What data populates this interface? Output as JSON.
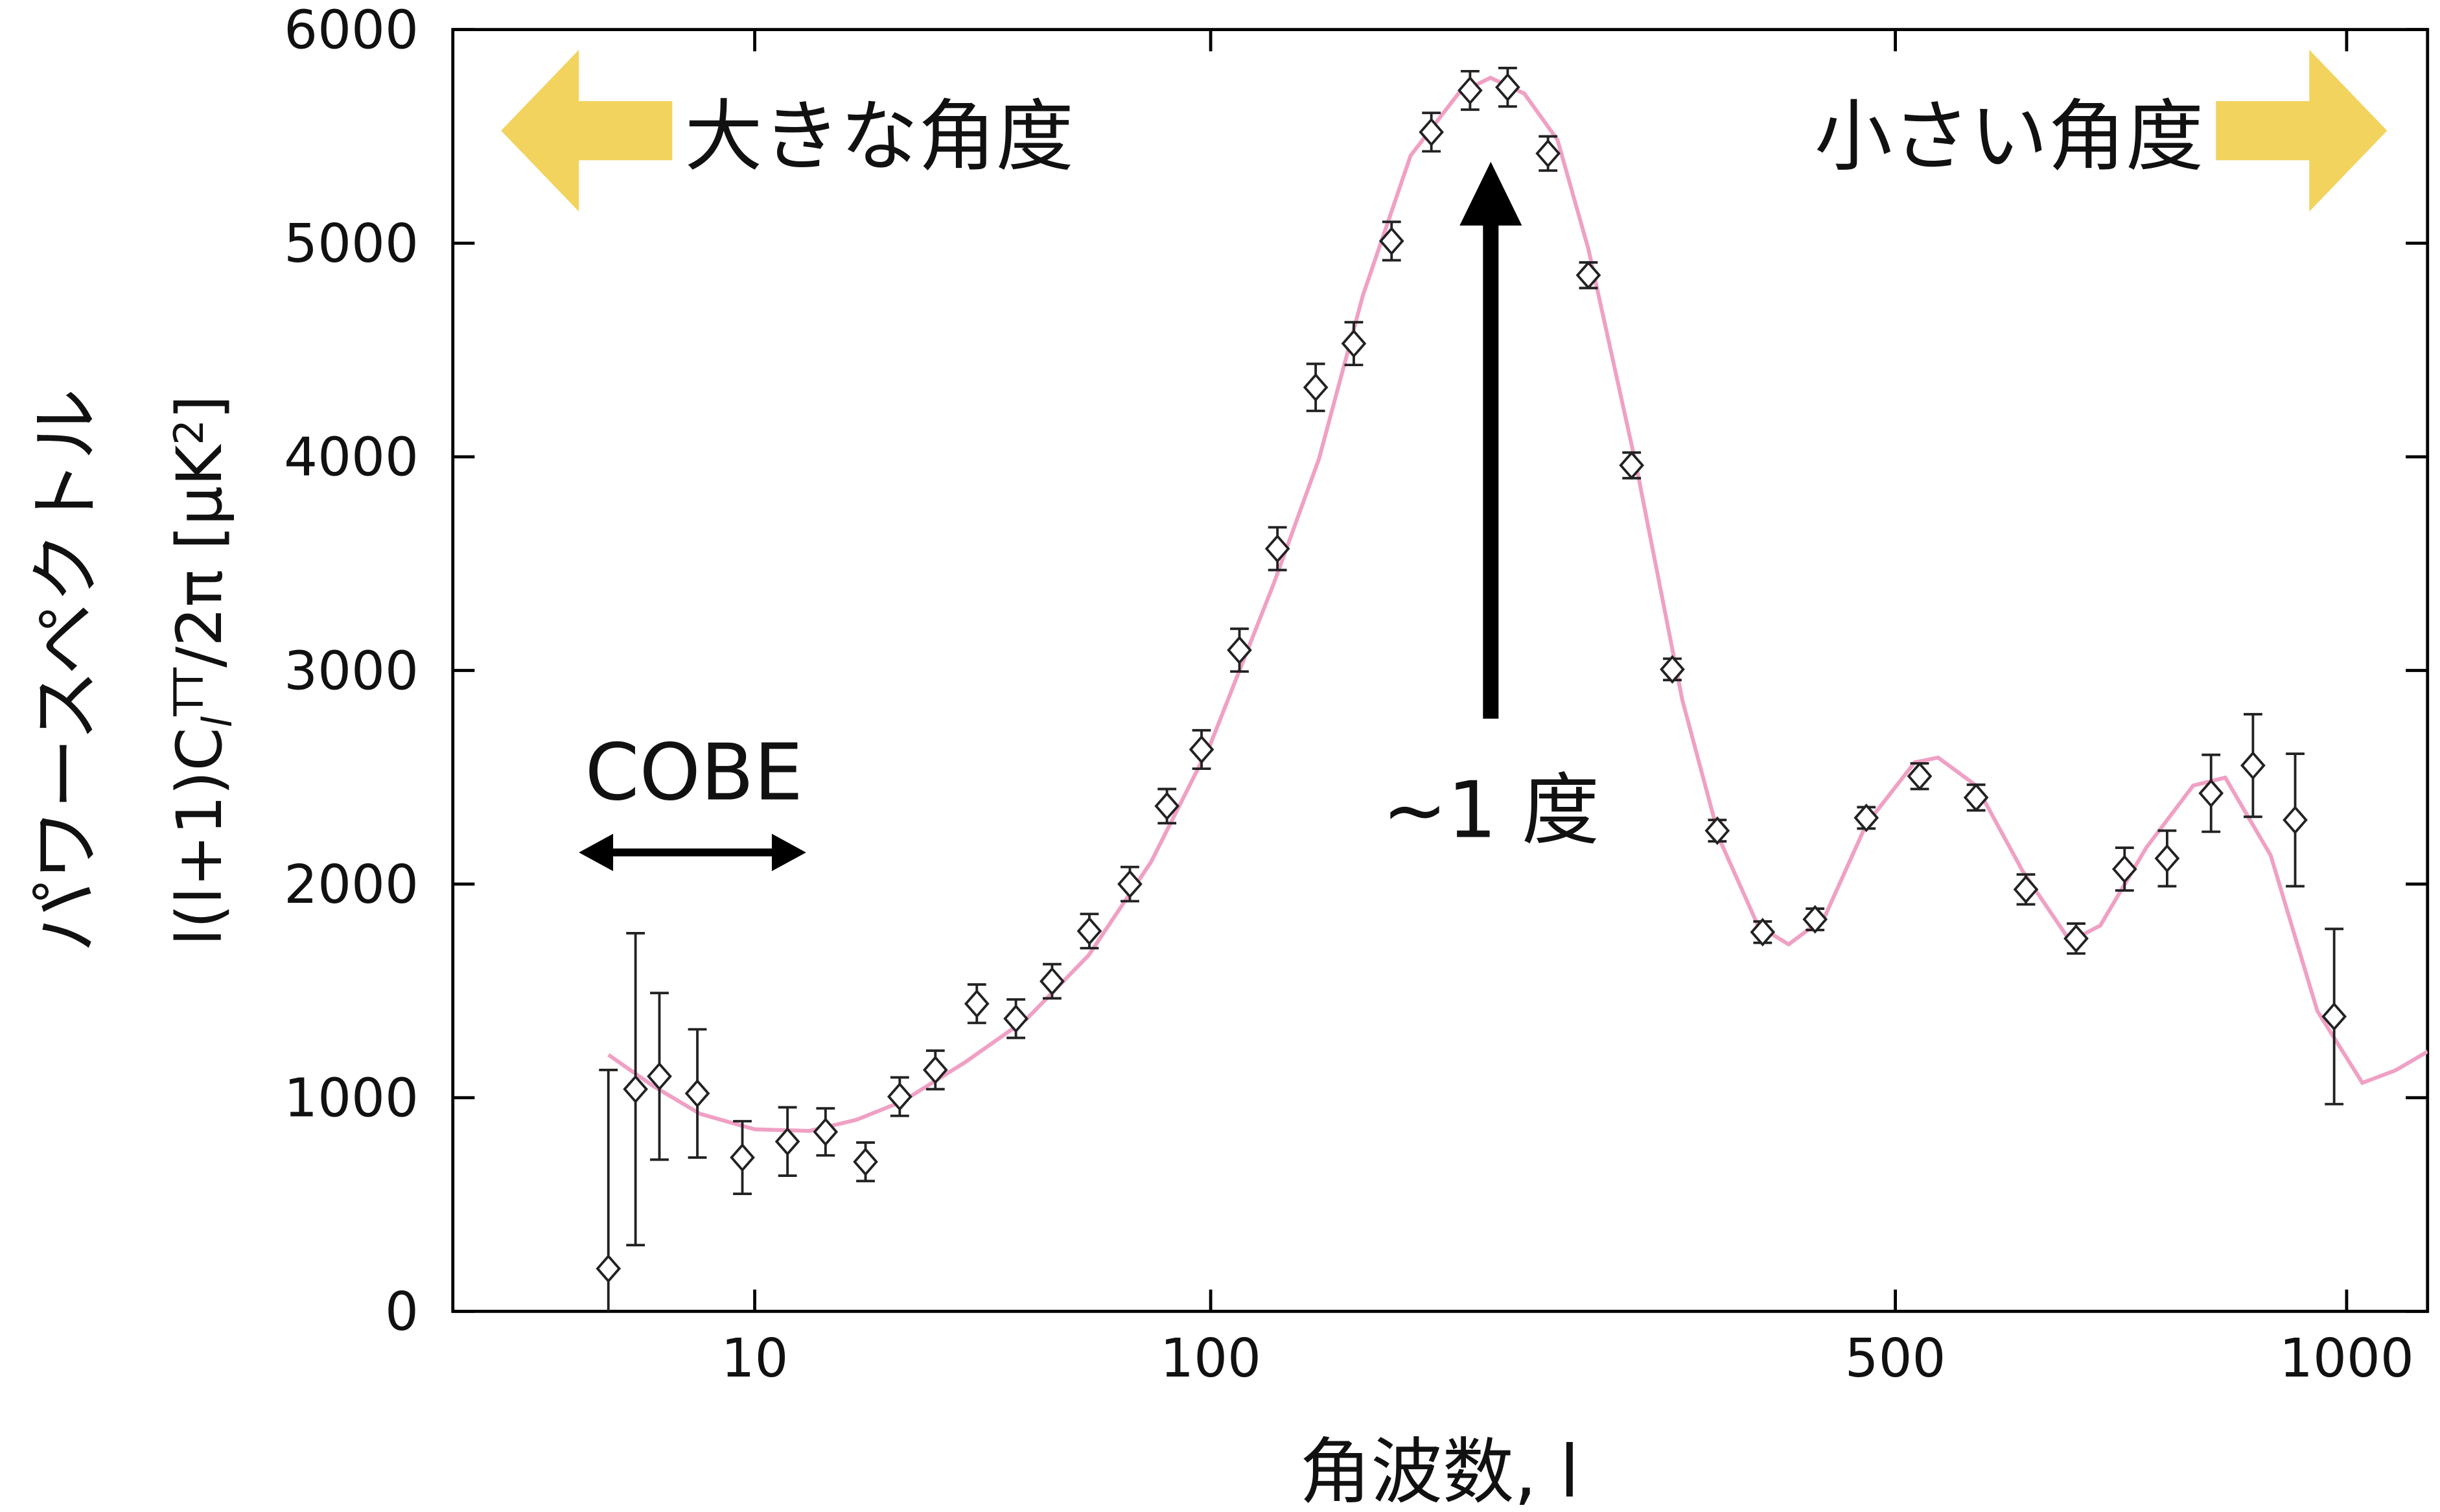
{
  "chart_data": {
    "type": "scatter",
    "xscale": "log",
    "xlim": [
      2.2,
      1130
    ],
    "xticks": [
      10,
      100,
      500,
      1000
    ],
    "ylim": [
      0,
      6000
    ],
    "yticks": [
      0,
      1000,
      2000,
      3000,
      4000,
      5000,
      6000
    ],
    "xlabel": "角波数, l",
    "ylabel": "パワースペクトル",
    "ylabel_formula": [
      "l(l+1)C",
      "l",
      "TT",
      "/2π [μK",
      "2",
      "]"
    ],
    "color": "#222222",
    "x": [
      4.8,
      5.5,
      6.2,
      7.5,
      9.4,
      11.8,
      14.3,
      17.5,
      20.8,
      24.9,
      30.7,
      37.4,
      44.9,
      54.2,
      66.5,
      80.2,
      95.5,
      107,
      117,
      128,
      140,
      153,
      168,
      184,
      201,
      221,
      243,
      269,
      296,
      329,
      366,
      414,
      467,
      519,
      566,
      611,
      660,
      711,
      759,
      812,
      866,
      924,
      981
    ],
    "values": [
      200,
      1040,
      1100,
      1020,
      720,
      795,
      840,
      700,
      1005,
      1130,
      1440,
      1370,
      1545,
      1780,
      2000,
      2365,
      2630,
      3095,
      3570,
      4325,
      4530,
      5010,
      5520,
      5715,
      5730,
      5420,
      4850,
      3960,
      3005,
      2250,
      1775,
      1835,
      2310,
      2505,
      2405,
      1975,
      1745,
      2070,
      2120,
      2425,
      2555,
      2300,
      1380
    ],
    "errors": [
      930,
      730,
      390,
      300,
      170,
      160,
      110,
      90,
      90,
      90,
      90,
      90,
      80,
      80,
      80,
      80,
      90,
      100,
      100,
      110,
      100,
      90,
      90,
      90,
      90,
      80,
      60,
      60,
      50,
      50,
      50,
      50,
      50,
      60,
      60,
      70,
      70,
      100,
      130,
      180,
      240,
      310,
      410
    ],
    "curve": {
      "color": "#f0a0c4",
      "x": [
        4.8,
        6,
        7.6,
        10,
        13.2,
        16.7,
        21.1,
        28.9,
        39.5,
        54,
        74,
        100,
        116,
        129,
        143,
        160,
        179,
        193,
        209,
        226,
        243,
        272,
        303,
        331,
        362,
        389,
        423,
        467,
        515,
        534,
        566,
        608,
        654,
        685,
        735,
        790,
        830,
        890,
        956,
        1024,
        1077,
        1130
      ],
      "values": [
        1201,
        1056,
        925,
        852,
        845,
        896,
        983,
        1165,
        1369,
        1667,
        2104,
        2658,
        3408,
        3990,
        4755,
        5410,
        5701,
        5774,
        5701,
        5483,
        4973,
        3954,
        2862,
        2206,
        1806,
        1718,
        1842,
        2279,
        2570,
        2592,
        2461,
        2061,
        1733,
        1806,
        2170,
        2461,
        2498,
        2134,
        1405,
        1070,
        1129,
        1216
      ]
    },
    "annotations": {
      "large_angle": "大きな角度",
      "small_angle": "小さい角度",
      "peak": "~1 度",
      "cobe": "COBE"
    }
  }
}
